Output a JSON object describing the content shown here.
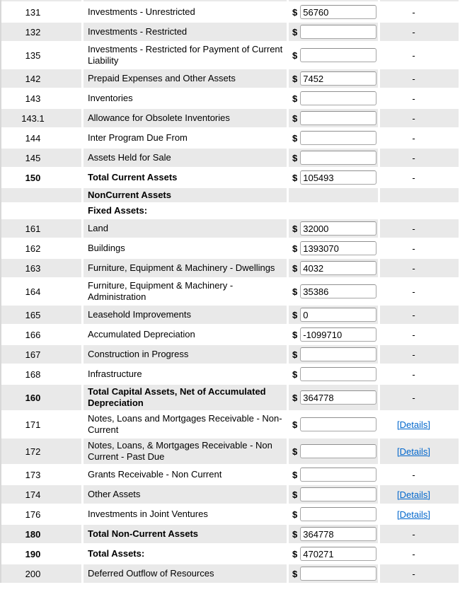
{
  "table": {
    "currency_symbol": "$",
    "dash": "-",
    "details_label": "[Details]",
    "colors": {
      "alt_row": "#e9e9e9",
      "link_blue": "#0066cc",
      "text": "#000000",
      "input_border": "#a6a6a6"
    },
    "rows": [
      {
        "line": "131",
        "label": "Investments - Unrestricted",
        "value": "56760",
        "right": "dash",
        "type": "item",
        "bold": false
      },
      {
        "line": "132",
        "label": "Investments - Restricted",
        "value": "",
        "right": "dash",
        "type": "item",
        "bold": false
      },
      {
        "line": "135",
        "label": "Investments - Restricted for Payment of Current Liability",
        "value": "",
        "right": "dash",
        "type": "item",
        "bold": false
      },
      {
        "line": "142",
        "label": "Prepaid Expenses and Other Assets",
        "value": "7452",
        "right": "dash",
        "type": "item",
        "bold": false
      },
      {
        "line": "143",
        "label": "Inventories",
        "value": "",
        "right": "dash",
        "type": "item",
        "bold": false
      },
      {
        "line": "143.1",
        "label": "Allowance for Obsolete Inventories",
        "value": "",
        "right": "dash",
        "type": "item",
        "bold": false
      },
      {
        "line": "144",
        "label": "Inter Program Due From",
        "value": "",
        "right": "dash",
        "type": "item",
        "bold": false
      },
      {
        "line": "145",
        "label": "Assets Held for Sale",
        "value": "",
        "right": "dash",
        "type": "item",
        "bold": false
      },
      {
        "line": "150",
        "label": "Total Current Assets",
        "value": "105493",
        "right": "dash",
        "type": "item",
        "bold": true
      },
      {
        "line": "",
        "label": "NonCurrent Assets",
        "value": null,
        "right": "none",
        "type": "section",
        "bold": true
      },
      {
        "line": "",
        "label": "Fixed Assets:",
        "value": null,
        "right": "none",
        "type": "section",
        "bold": true
      },
      {
        "line": "161",
        "label": "Land",
        "value": "32000",
        "right": "dash",
        "type": "item",
        "bold": false
      },
      {
        "line": "162",
        "label": "Buildings",
        "value": "1393070",
        "right": "dash",
        "type": "item",
        "bold": false
      },
      {
        "line": "163",
        "label": "Furniture, Equipment & Machinery - Dwellings",
        "value": "4032",
        "right": "dash",
        "type": "item",
        "bold": false
      },
      {
        "line": "164",
        "label": "Furniture, Equipment & Machinery - Administration",
        "value": "35386",
        "right": "dash",
        "type": "item",
        "bold": false
      },
      {
        "line": "165",
        "label": "Leasehold Improvements",
        "value": "0",
        "right": "dash",
        "type": "item",
        "bold": false
      },
      {
        "line": "166",
        "label": "Accumulated Depreciation",
        "value": "-1099710",
        "right": "dash",
        "type": "item",
        "bold": false
      },
      {
        "line": "167",
        "label": "Construction in Progress",
        "value": "",
        "right": "dash",
        "type": "item",
        "bold": false
      },
      {
        "line": "168",
        "label": "Infrastructure",
        "value": "",
        "right": "dash",
        "type": "item",
        "bold": false
      },
      {
        "line": "160",
        "label": "Total Capital Assets, Net of Accumulated Depreciation",
        "value": "364778",
        "right": "dash",
        "type": "item",
        "bold": true
      },
      {
        "line": "171",
        "label": "Notes, Loans and Mortgages Receivable - Non-Current",
        "value": "",
        "right": "details",
        "type": "item",
        "bold": false
      },
      {
        "line": "172",
        "label": "Notes, Loans, & Mortgages Receivable - Non Current - Past Due",
        "value": "",
        "right": "details",
        "type": "item",
        "bold": false
      },
      {
        "line": "173",
        "label": "Grants Receivable - Non Current",
        "value": "",
        "right": "dash",
        "type": "item",
        "bold": false
      },
      {
        "line": "174",
        "label": "Other Assets",
        "value": "",
        "right": "details",
        "type": "item",
        "bold": false
      },
      {
        "line": "176",
        "label": "Investments in Joint Ventures",
        "value": "",
        "right": "details",
        "type": "item",
        "bold": false
      },
      {
        "line": "180",
        "label": "Total Non-Current Assets",
        "value": "364778",
        "right": "dash",
        "type": "item",
        "bold": true
      },
      {
        "line": "190",
        "label": "Total Assets:",
        "value": "470271",
        "right": "dash",
        "type": "item",
        "bold": true
      },
      {
        "line": "200",
        "label": "Deferred Outflow of Resources",
        "value": "",
        "right": "dash",
        "type": "item",
        "bold": false
      }
    ]
  }
}
